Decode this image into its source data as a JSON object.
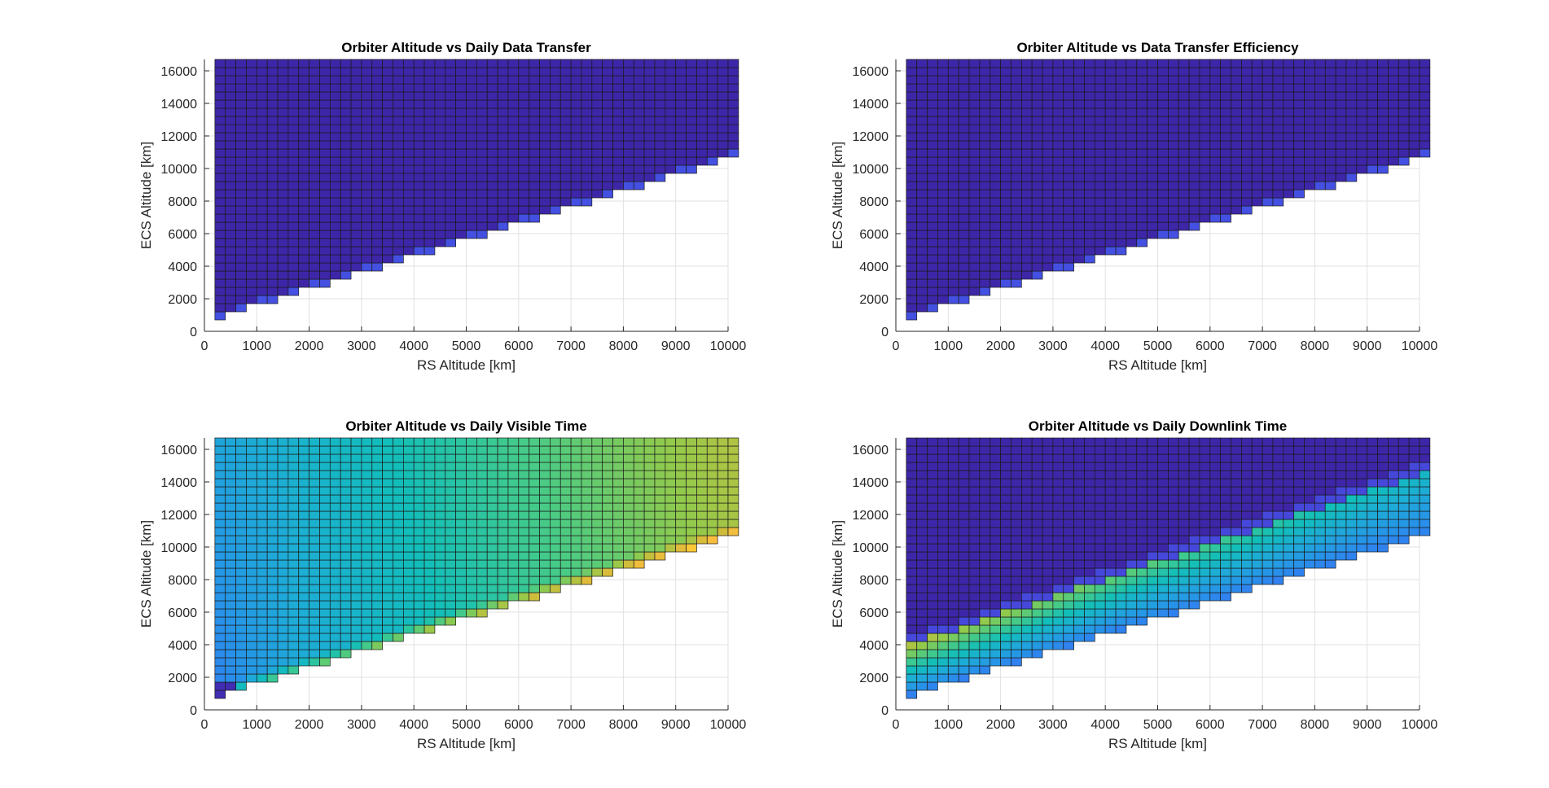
{
  "chart_data": [
    {
      "type": "heatmap",
      "title": "Orbiter Altitude vs Daily Data Transfer",
      "xlabel": "RS Altitude [km]",
      "ylabel": "ECS Altitude [km]",
      "xlim": [
        0,
        10000
      ],
      "ylim": [
        0,
        16700
      ],
      "xticks": [
        0,
        1000,
        2000,
        3000,
        4000,
        5000,
        6000,
        7000,
        8000,
        9000,
        10000
      ],
      "yticks": [
        0,
        2000,
        4000,
        6000,
        8000,
        10000,
        12000,
        14000,
        16000
      ],
      "grid": true,
      "colormap": "parula",
      "cells": {
        "rs_altitude_start": 200,
        "rs_altitude_step": 200,
        "rs_count": 50,
        "ecs_altitude_start": 700,
        "ecs_altitude_step": 500,
        "ecs_count": 32,
        "valid_region": "ECS altitude >= RS altitude + 500 km",
        "pattern": "data_transfer"
      }
    },
    {
      "type": "heatmap",
      "title": "Orbiter Altitude vs Data Transfer Efficiency",
      "xlabel": "RS Altitude [km]",
      "ylabel": "ECS Altitude [km]",
      "xlim": [
        0,
        10000
      ],
      "ylim": [
        0,
        16700
      ],
      "xticks": [
        0,
        1000,
        2000,
        3000,
        4000,
        5000,
        6000,
        7000,
        8000,
        9000,
        10000
      ],
      "yticks": [
        0,
        2000,
        4000,
        6000,
        8000,
        10000,
        12000,
        14000,
        16000
      ],
      "grid": true,
      "colormap": "parula",
      "cells": {
        "rs_altitude_start": 200,
        "rs_altitude_step": 200,
        "rs_count": 50,
        "ecs_altitude_start": 700,
        "ecs_altitude_step": 500,
        "ecs_count": 32,
        "valid_region": "ECS altitude >= RS altitude + 500 km",
        "pattern": "efficiency"
      }
    },
    {
      "type": "heatmap",
      "title": "Orbiter Altitude vs Daily Visible Time",
      "xlabel": "RS Altitude [km]",
      "ylabel": "ECS Altitude [km]",
      "xlim": [
        0,
        10000
      ],
      "ylim": [
        0,
        16700
      ],
      "xticks": [
        0,
        1000,
        2000,
        3000,
        4000,
        5000,
        6000,
        7000,
        8000,
        9000,
        10000
      ],
      "yticks": [
        0,
        2000,
        4000,
        6000,
        8000,
        10000,
        12000,
        14000,
        16000
      ],
      "grid": true,
      "colormap": "parula",
      "cells": {
        "rs_altitude_start": 200,
        "rs_altitude_step": 200,
        "rs_count": 50,
        "ecs_altitude_start": 700,
        "ecs_altitude_step": 500,
        "ecs_count": 32,
        "valid_region": "ECS altitude >= RS altitude + 500 km",
        "pattern": "visible_time"
      }
    },
    {
      "type": "heatmap",
      "title": "Orbiter Altitude vs Daily Downlink Time",
      "xlabel": "RS Altitude [km]",
      "ylabel": "ECS Altitude [km]",
      "xlim": [
        0,
        10000
      ],
      "ylim": [
        0,
        16700
      ],
      "xticks": [
        0,
        1000,
        2000,
        3000,
        4000,
        5000,
        6000,
        7000,
        8000,
        9000,
        10000
      ],
      "yticks": [
        0,
        2000,
        4000,
        6000,
        8000,
        10000,
        12000,
        14000,
        16000
      ],
      "grid": true,
      "colormap": "parula",
      "cells": {
        "rs_altitude_start": 200,
        "rs_altitude_step": 200,
        "rs_count": 50,
        "ecs_altitude_start": 700,
        "ecs_altitude_step": 500,
        "ecs_count": 32,
        "valid_region": "ECS altitude >= RS altitude + 500 km",
        "pattern": "downlink_time"
      }
    }
  ]
}
